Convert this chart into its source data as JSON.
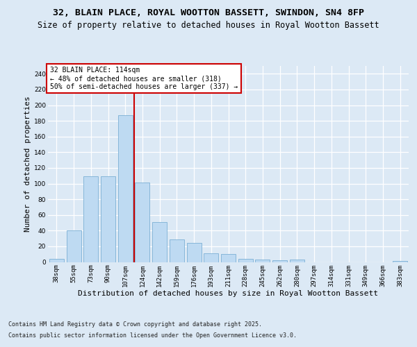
{
  "title": "32, BLAIN PLACE, ROYAL WOOTTON BASSETT, SWINDON, SN4 8FP",
  "subtitle": "Size of property relative to detached houses in Royal Wootton Bassett",
  "xlabel": "Distribution of detached houses by size in Royal Wootton Bassett",
  "ylabel": "Number of detached properties",
  "categories": [
    "38sqm",
    "55sqm",
    "73sqm",
    "90sqm",
    "107sqm",
    "124sqm",
    "142sqm",
    "159sqm",
    "176sqm",
    "193sqm",
    "211sqm",
    "228sqm",
    "245sqm",
    "262sqm",
    "280sqm",
    "297sqm",
    "314sqm",
    "331sqm",
    "349sqm",
    "366sqm",
    "383sqm"
  ],
  "values": [
    4,
    40,
    109,
    109,
    187,
    101,
    51,
    29,
    24,
    11,
    10,
    4,
    3,
    2,
    3,
    0,
    0,
    0,
    0,
    0,
    1
  ],
  "bar_color": "#bedaf2",
  "bar_edge_color": "#7bafd4",
  "vline_x": 4.5,
  "vline_color": "#cc0000",
  "annotation_line1": "32 BLAIN PLACE: 114sqm",
  "annotation_line2": "← 48% of detached houses are smaller (318)",
  "annotation_line3": "50% of semi-detached houses are larger (337) →",
  "annotation_box_facecolor": "#ffffff",
  "annotation_box_edgecolor": "#cc0000",
  "ylim": [
    0,
    250
  ],
  "yticks": [
    0,
    20,
    40,
    60,
    80,
    100,
    120,
    140,
    160,
    180,
    200,
    220,
    240
  ],
  "footer_line1": "Contains HM Land Registry data © Crown copyright and database right 2025.",
  "footer_line2": "Contains public sector information licensed under the Open Government Licence v3.0.",
  "bg_color": "#dce9f5",
  "title_fontsize": 9.5,
  "subtitle_fontsize": 8.5,
  "tick_fontsize": 6.5,
  "ylabel_fontsize": 8,
  "xlabel_fontsize": 8,
  "footer_fontsize": 6,
  "annotation_fontsize": 7
}
